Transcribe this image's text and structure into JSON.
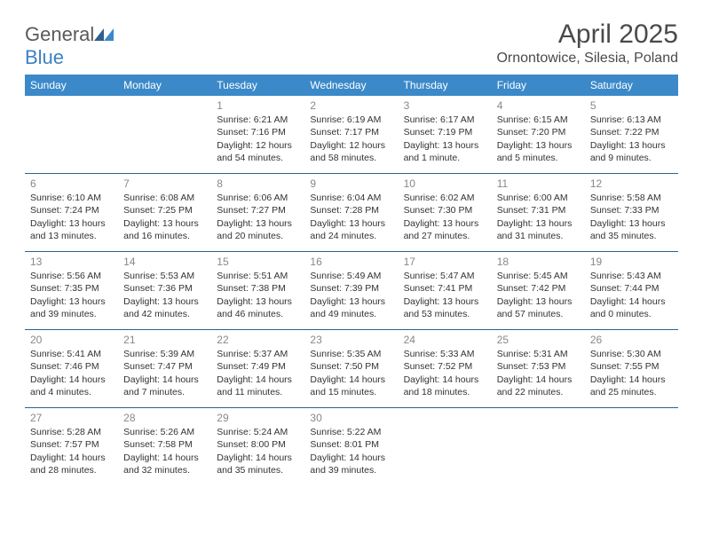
{
  "logo": {
    "text1": "General",
    "text2": "Blue"
  },
  "title": "April 2025",
  "subtitle": "Ornontowice, Silesia, Poland",
  "headers": [
    "Sunday",
    "Monday",
    "Tuesday",
    "Wednesday",
    "Thursday",
    "Friday",
    "Saturday"
  ],
  "colors": {
    "header_bg": "#3b89c9",
    "header_fg": "#ffffff",
    "row_border": "#2f5f8f",
    "daynum": "#888888",
    "text": "#333333",
    "logo_blue": "#3b82c4",
    "logo_gray": "#5a5a5a"
  },
  "weeks": [
    [
      {
        "n": "",
        "sr": "",
        "ss": "",
        "dl": ""
      },
      {
        "n": "",
        "sr": "",
        "ss": "",
        "dl": ""
      },
      {
        "n": "1",
        "sr": "Sunrise: 6:21 AM",
        "ss": "Sunset: 7:16 PM",
        "dl": "Daylight: 12 hours and 54 minutes."
      },
      {
        "n": "2",
        "sr": "Sunrise: 6:19 AM",
        "ss": "Sunset: 7:17 PM",
        "dl": "Daylight: 12 hours and 58 minutes."
      },
      {
        "n": "3",
        "sr": "Sunrise: 6:17 AM",
        "ss": "Sunset: 7:19 PM",
        "dl": "Daylight: 13 hours and 1 minute."
      },
      {
        "n": "4",
        "sr": "Sunrise: 6:15 AM",
        "ss": "Sunset: 7:20 PM",
        "dl": "Daylight: 13 hours and 5 minutes."
      },
      {
        "n": "5",
        "sr": "Sunrise: 6:13 AM",
        "ss": "Sunset: 7:22 PM",
        "dl": "Daylight: 13 hours and 9 minutes."
      }
    ],
    [
      {
        "n": "6",
        "sr": "Sunrise: 6:10 AM",
        "ss": "Sunset: 7:24 PM",
        "dl": "Daylight: 13 hours and 13 minutes."
      },
      {
        "n": "7",
        "sr": "Sunrise: 6:08 AM",
        "ss": "Sunset: 7:25 PM",
        "dl": "Daylight: 13 hours and 16 minutes."
      },
      {
        "n": "8",
        "sr": "Sunrise: 6:06 AM",
        "ss": "Sunset: 7:27 PM",
        "dl": "Daylight: 13 hours and 20 minutes."
      },
      {
        "n": "9",
        "sr": "Sunrise: 6:04 AM",
        "ss": "Sunset: 7:28 PM",
        "dl": "Daylight: 13 hours and 24 minutes."
      },
      {
        "n": "10",
        "sr": "Sunrise: 6:02 AM",
        "ss": "Sunset: 7:30 PM",
        "dl": "Daylight: 13 hours and 27 minutes."
      },
      {
        "n": "11",
        "sr": "Sunrise: 6:00 AM",
        "ss": "Sunset: 7:31 PM",
        "dl": "Daylight: 13 hours and 31 minutes."
      },
      {
        "n": "12",
        "sr": "Sunrise: 5:58 AM",
        "ss": "Sunset: 7:33 PM",
        "dl": "Daylight: 13 hours and 35 minutes."
      }
    ],
    [
      {
        "n": "13",
        "sr": "Sunrise: 5:56 AM",
        "ss": "Sunset: 7:35 PM",
        "dl": "Daylight: 13 hours and 39 minutes."
      },
      {
        "n": "14",
        "sr": "Sunrise: 5:53 AM",
        "ss": "Sunset: 7:36 PM",
        "dl": "Daylight: 13 hours and 42 minutes."
      },
      {
        "n": "15",
        "sr": "Sunrise: 5:51 AM",
        "ss": "Sunset: 7:38 PM",
        "dl": "Daylight: 13 hours and 46 minutes."
      },
      {
        "n": "16",
        "sr": "Sunrise: 5:49 AM",
        "ss": "Sunset: 7:39 PM",
        "dl": "Daylight: 13 hours and 49 minutes."
      },
      {
        "n": "17",
        "sr": "Sunrise: 5:47 AM",
        "ss": "Sunset: 7:41 PM",
        "dl": "Daylight: 13 hours and 53 minutes."
      },
      {
        "n": "18",
        "sr": "Sunrise: 5:45 AM",
        "ss": "Sunset: 7:42 PM",
        "dl": "Daylight: 13 hours and 57 minutes."
      },
      {
        "n": "19",
        "sr": "Sunrise: 5:43 AM",
        "ss": "Sunset: 7:44 PM",
        "dl": "Daylight: 14 hours and 0 minutes."
      }
    ],
    [
      {
        "n": "20",
        "sr": "Sunrise: 5:41 AM",
        "ss": "Sunset: 7:46 PM",
        "dl": "Daylight: 14 hours and 4 minutes."
      },
      {
        "n": "21",
        "sr": "Sunrise: 5:39 AM",
        "ss": "Sunset: 7:47 PM",
        "dl": "Daylight: 14 hours and 7 minutes."
      },
      {
        "n": "22",
        "sr": "Sunrise: 5:37 AM",
        "ss": "Sunset: 7:49 PM",
        "dl": "Daylight: 14 hours and 11 minutes."
      },
      {
        "n": "23",
        "sr": "Sunrise: 5:35 AM",
        "ss": "Sunset: 7:50 PM",
        "dl": "Daylight: 14 hours and 15 minutes."
      },
      {
        "n": "24",
        "sr": "Sunrise: 5:33 AM",
        "ss": "Sunset: 7:52 PM",
        "dl": "Daylight: 14 hours and 18 minutes."
      },
      {
        "n": "25",
        "sr": "Sunrise: 5:31 AM",
        "ss": "Sunset: 7:53 PM",
        "dl": "Daylight: 14 hours and 22 minutes."
      },
      {
        "n": "26",
        "sr": "Sunrise: 5:30 AM",
        "ss": "Sunset: 7:55 PM",
        "dl": "Daylight: 14 hours and 25 minutes."
      }
    ],
    [
      {
        "n": "27",
        "sr": "Sunrise: 5:28 AM",
        "ss": "Sunset: 7:57 PM",
        "dl": "Daylight: 14 hours and 28 minutes."
      },
      {
        "n": "28",
        "sr": "Sunrise: 5:26 AM",
        "ss": "Sunset: 7:58 PM",
        "dl": "Daylight: 14 hours and 32 minutes."
      },
      {
        "n": "29",
        "sr": "Sunrise: 5:24 AM",
        "ss": "Sunset: 8:00 PM",
        "dl": "Daylight: 14 hours and 35 minutes."
      },
      {
        "n": "30",
        "sr": "Sunrise: 5:22 AM",
        "ss": "Sunset: 8:01 PM",
        "dl": "Daylight: 14 hours and 39 minutes."
      },
      {
        "n": "",
        "sr": "",
        "ss": "",
        "dl": ""
      },
      {
        "n": "",
        "sr": "",
        "ss": "",
        "dl": ""
      },
      {
        "n": "",
        "sr": "",
        "ss": "",
        "dl": ""
      }
    ]
  ]
}
